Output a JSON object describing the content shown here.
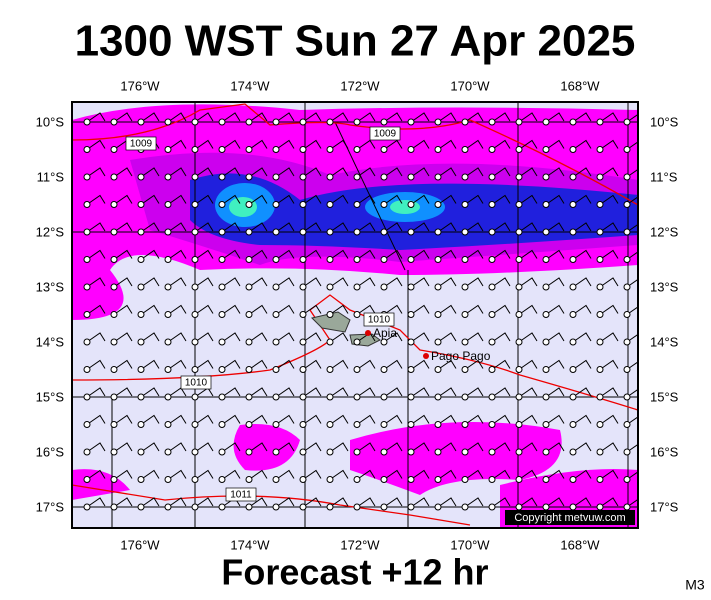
{
  "header": {
    "title": "1300 WST Sun 27 Apr 2025"
  },
  "map": {
    "lon_labels": [
      "176°W",
      "174°W",
      "172°W",
      "170°W",
      "168°W"
    ],
    "lat_labels": [
      "10°S",
      "11°S",
      "12°S",
      "13°S",
      "14°S",
      "15°S",
      "16°S",
      "17°S"
    ],
    "isobar_labels": [
      "1009",
      "1009",
      "1010",
      "1010",
      "1011"
    ],
    "places": [
      "Apia",
      "Pago Pago"
    ],
    "copyright": "Copyright metvuw.com"
  },
  "footer": {
    "forecast": "Forecast +12 hr",
    "code": "M3"
  }
}
